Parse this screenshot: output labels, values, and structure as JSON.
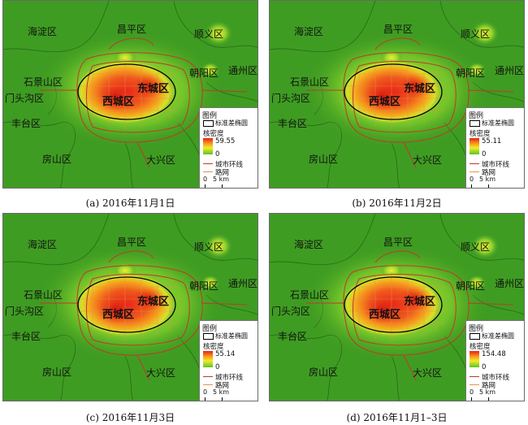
{
  "panels": [
    {
      "caption": "(a) 2016年11月1日",
      "density_max": 59.55,
      "density_min": 0,
      "labels": {
        "haidian": "海淀区",
        "changping": "昌平区",
        "shunyi": "顺义区",
        "tongzhou": "通州区",
        "chaoyang": "朝阳区",
        "shijingshan": "石景山区",
        "mentougou": "门头沟区",
        "dongcheng": "东城区",
        "xicheng": "西城区",
        "fengtai": "丰台区",
        "fangshan": "房山区",
        "daxing": "大兴区"
      }
    },
    {
      "caption": "(b) 2016年11月2日",
      "density_max": 55.11,
      "density_min": 0,
      "labels": {
        "haidian": "海淀区",
        "changping": "昌平区",
        "shunyi": "顺义区",
        "tongzhou": "通州区",
        "chaoyang": "朝阳区",
        "shijingshan": "石景山区",
        "mentougou": "门头沟区",
        "dongcheng": "东城区",
        "xicheng": "西城区",
        "fengtai": "丰台区",
        "fangshan": "房山区",
        "daxing": "大兴区"
      }
    },
    {
      "caption": "(c) 2016年11月3日",
      "density_max": 55.14,
      "density_min": 0,
      "labels": {
        "haidian": "海淀区",
        "changping": "昌平区",
        "shunyi": "顺义区",
        "tongzhou": "通州区",
        "chaoyang": "朝阳区",
        "shijingshan": "石景山区",
        "mentougou": "门头沟区",
        "dongcheng": "东城区",
        "xicheng": "西城区",
        "fengtai": "丰台区",
        "fangshan": "房山区",
        "daxing": "大兴区"
      }
    },
    {
      "caption": "(d) 2016年11月1–3日",
      "density_max": 154.48,
      "density_min": 0,
      "labels": {
        "haidian": "海淀区",
        "changping": "昌平区",
        "shunyi": "顺义区",
        "tongzhou": "通州区",
        "chaoyang": "朝阳区",
        "shijingshan": "石景山区",
        "mentougou": "门头沟区",
        "dongcheng": "东城区",
        "xicheng": "西城区",
        "fengtai": "丰台区",
        "fangshan": "房山区",
        "daxing": "大兴区"
      }
    }
  ],
  "legend": {
    "title": "图例",
    "ellipse": "标准差椭圆",
    "density": "核密度",
    "ring": "城市环线",
    "road": "路网",
    "scale_zero": "0",
    "scale_five": "5 km"
  },
  "colors": {
    "background": "#3f9c22",
    "hot": "#e8201a",
    "warm": "#f6a11c",
    "yellow": "#f2ec2a",
    "ring": "#c0392b",
    "road": "#e89246",
    "ellipse": "#000000"
  }
}
